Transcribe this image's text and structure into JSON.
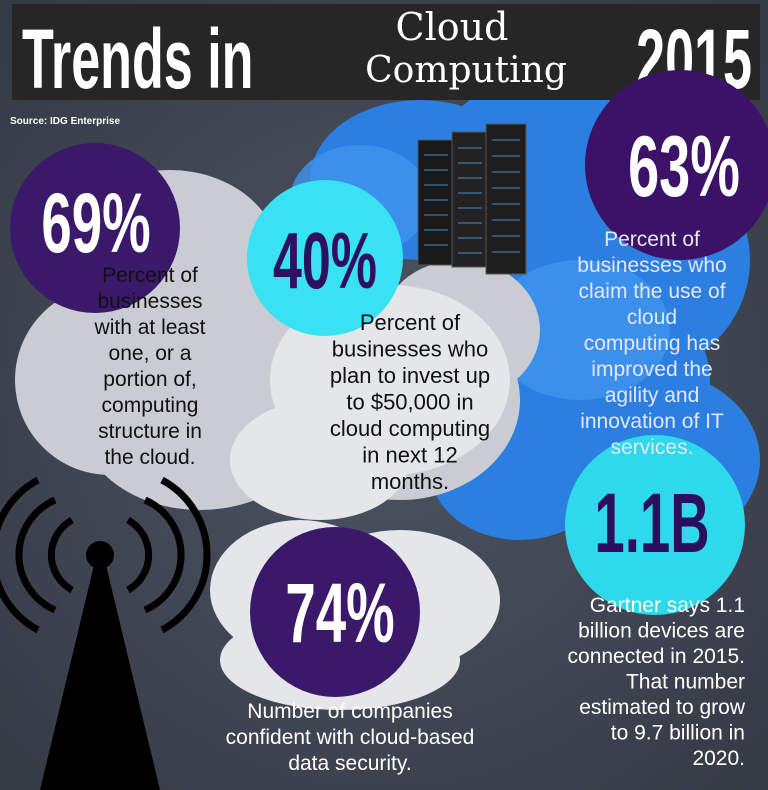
{
  "header": {
    "title_left": "Trends in",
    "title_mid_top": "Cloud",
    "title_mid_bottom": "Computing",
    "title_right": "2015",
    "source": "Source: IDG Enterprise"
  },
  "stats": [
    {
      "value": "69%",
      "lines": [
        "Percent of",
        "businesses",
        "with at least",
        "one, or a",
        "portion of,",
        "computing",
        "structure in",
        "the cloud."
      ]
    },
    {
      "value": "40%",
      "lines": [
        "Percent of",
        "businesses who",
        "plan to invest up",
        "to $50,000 in",
        "cloud computing",
        "in next 12",
        "months."
      ]
    },
    {
      "value": "63%",
      "lines": [
        "Percent of",
        "businesses who",
        "claim the use of",
        "cloud",
        "computing has",
        "improved the",
        "agility and",
        "innovation of IT",
        "services."
      ]
    },
    {
      "value": "1.1B",
      "lines": [
        "Gartner says 1.1",
        "billion devices are",
        "connected in 2015.",
        "That number",
        "estimated to grow",
        "to 9.7 billion in",
        "2020."
      ]
    },
    {
      "value": "74%",
      "lines": [
        "Number of companies",
        "confident with cloud-based",
        "data security."
      ]
    }
  ]
}
